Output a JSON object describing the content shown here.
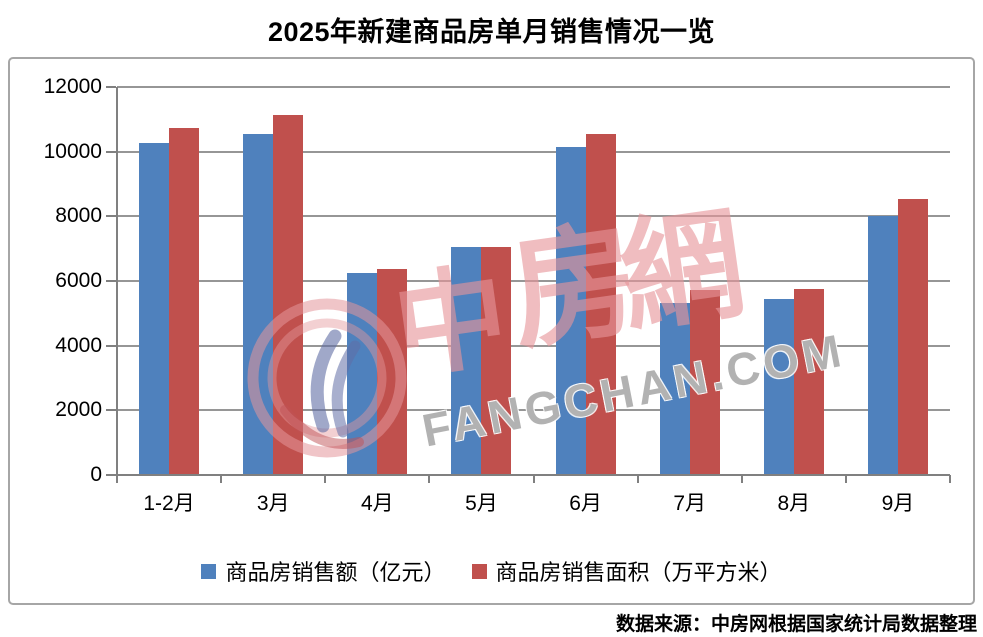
{
  "title": "2025年新建商品房单月销售情况一览",
  "source_note": "数据来源：中房网根据国家统计局数据整理",
  "watermark": {
    "chars": [
      "中",
      "房",
      "網"
    ],
    "domain": "FANGCHAN.COM"
  },
  "colors": {
    "series_blue": "#4F81BD",
    "series_red": "#C0504D",
    "gridline": "#969696",
    "axis_line": "#808080",
    "frame_border": "#A6A6A6",
    "watermark_pink": "#E7949A",
    "watermark_gray": "#7A7A7A"
  },
  "chart_data": {
    "type": "bar",
    "title": "2025年新建商品房单月销售情况一览",
    "categories": [
      "1-2月",
      "3月",
      "4月",
      "5月",
      "6月",
      "7月",
      "8月",
      "9月"
    ],
    "series": [
      {
        "name": "商品房销售额（亿元）",
        "color": "#4F81BD",
        "values": [
          10259,
          10539,
          6237,
          7056,
          10150,
          5325,
          5449,
          8025
        ]
      },
      {
        "name": "商品房销售面积（万平方米）",
        "color": "#C0504D",
        "values": [
          10746,
          11132,
          6384,
          7053,
          10536,
          5709,
          5744,
          8531
        ]
      }
    ],
    "xlabel": "",
    "ylabel": "",
    "ylim": [
      0,
      12000
    ],
    "y_ticks": [
      0,
      2000,
      4000,
      6000,
      8000,
      10000,
      12000
    ],
    "grid": true,
    "legend_position": "bottom"
  }
}
